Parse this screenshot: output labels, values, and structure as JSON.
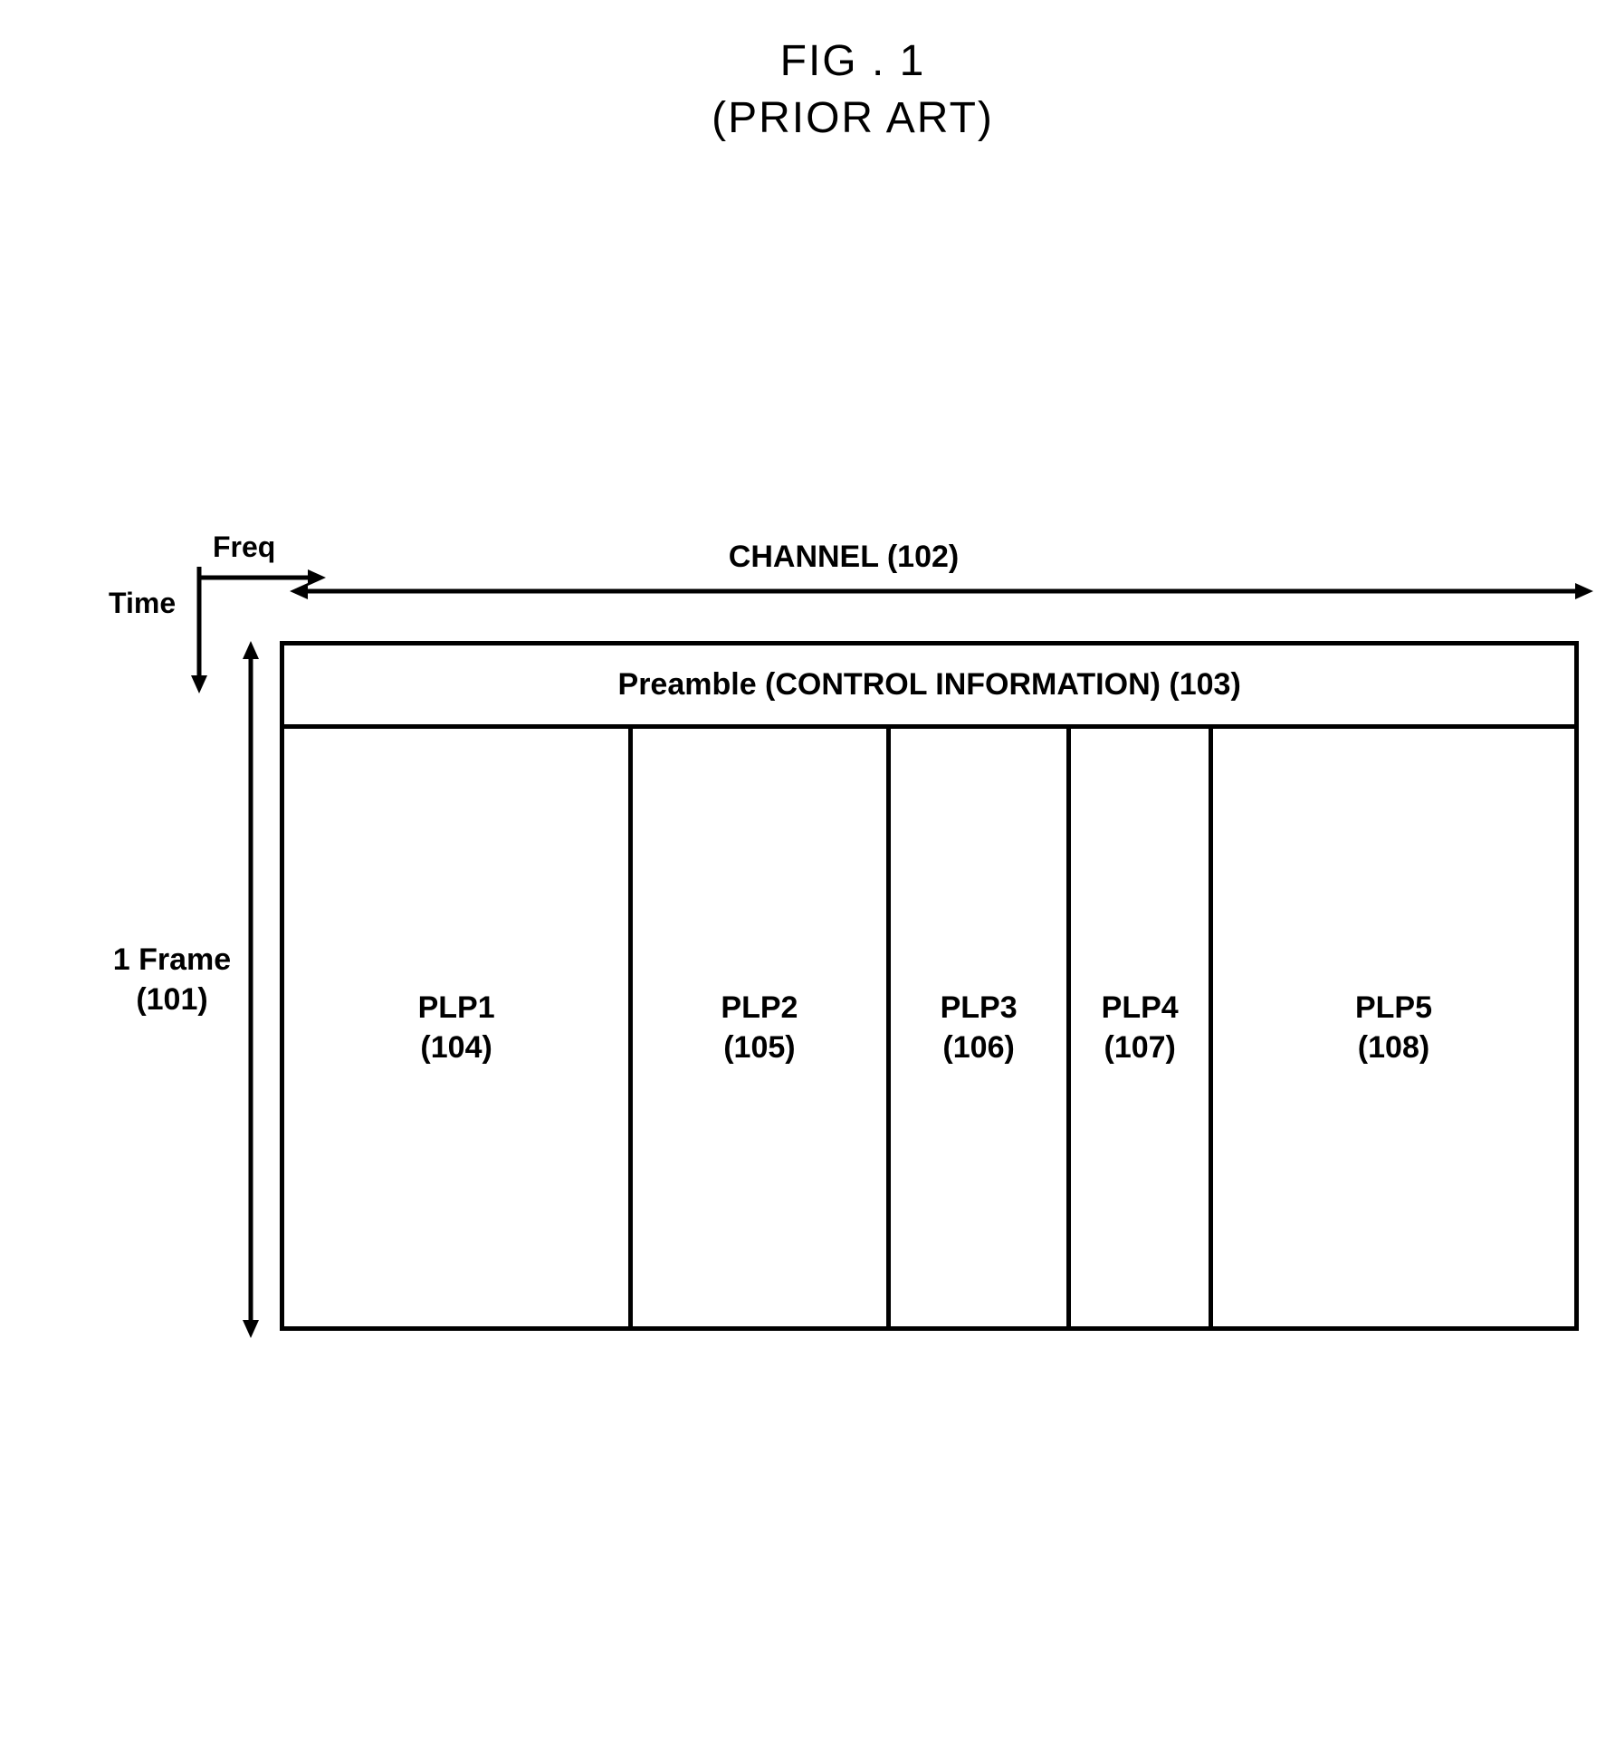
{
  "figure": {
    "title": "FIG . 1",
    "subtitle": "(PRIOR ART)"
  },
  "axes": {
    "freq_label": "Freq",
    "time_label": "Time",
    "freq_arrow_length": 130,
    "time_arrow_length": 130,
    "axis_stroke": "#000000",
    "axis_stroke_width": 5
  },
  "channel": {
    "label": "CHANNEL (102)",
    "arrow_width": 1420,
    "arrow_stroke": "#000000",
    "arrow_stroke_width": 5
  },
  "frame": {
    "label_line1": "1 Frame",
    "label_line2": "(101)",
    "arrow_height": 770,
    "arrow_stroke": "#000000",
    "arrow_stroke_width": 5
  },
  "preamble": {
    "text": "Preamble (CONTROL INFORMATION) (103)"
  },
  "plps": [
    {
      "name": "PLP1",
      "ref": "(104)",
      "width_pct": 27
    },
    {
      "name": "PLP2",
      "ref": "(105)",
      "width_pct": 20
    },
    {
      "name": "PLP3",
      "ref": "(106)",
      "width_pct": 14
    },
    {
      "name": "PLP4",
      "ref": "(107)",
      "width_pct": 11
    },
    {
      "name": "PLP5",
      "ref": "(108)",
      "width_pct": 28
    }
  ],
  "styling": {
    "border_color": "#000000",
    "border_width": 5,
    "background": "#ffffff",
    "font_family": "Arial, sans-serif",
    "title_fontsize": 48,
    "label_fontsize": 34,
    "axis_label_fontsize": 32
  }
}
